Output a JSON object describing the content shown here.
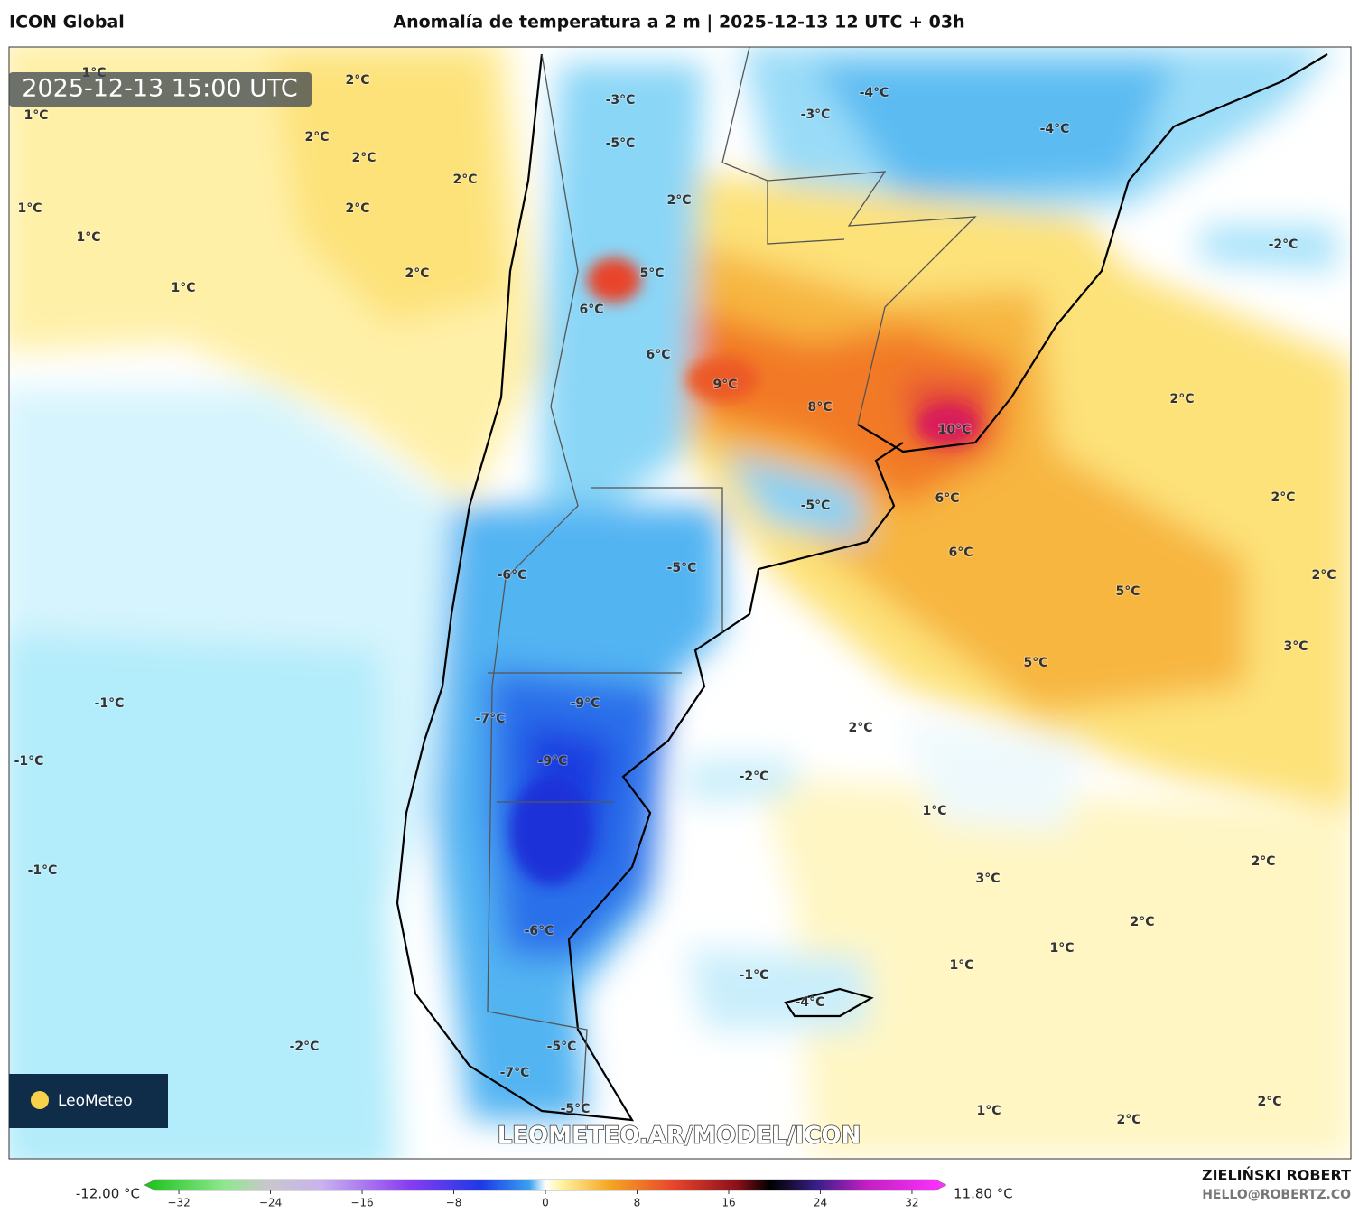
{
  "header": {
    "model": "ICON Global",
    "title": "Anomalía de temperatura a 2 m | 2025-12-13 12 UTC + 03h"
  },
  "map": {
    "timestamp": "2025-12-13 15:00 UTC",
    "watermark": "LEOMETEO.AR/MODEL/ICON",
    "logo": "LeoMeteo",
    "labels": [
      "1°C",
      "2°C",
      "1°C",
      "2°C",
      "2°C",
      "2°C",
      "1°C",
      "2°C",
      "1°C",
      "2°C",
      "1°C",
      "-3°C",
      "-5°C",
      "2°C",
      "5°C",
      "6°C",
      "6°C",
      "9°C",
      "8°C",
      "10°C",
      "-4°C",
      "-3°C",
      "-4°C",
      "-2°C",
      "2°C",
      "6°C",
      "-5°C",
      "2°C",
      "6°C",
      "-6°C",
      "-5°C",
      "2°C",
      "5°C",
      "3°C",
      "5°C",
      "-1°C",
      "-9°C",
      "-7°C",
      "2°C",
      "-1°C",
      "-9°C",
      "-2°C",
      "1°C",
      "2°C",
      "-1°C",
      "3°C",
      "2°C",
      "-6°C",
      "1°C",
      "1°C",
      "-1°C",
      "-4°C",
      "-2°C",
      "-5°C",
      "-7°C",
      "-5°C",
      "1°C",
      "2°C",
      "2°C"
    ]
  },
  "colorbar": {
    "min_label": "-12.00 °C",
    "max_label": "11.80 °C",
    "lim": [
      -35,
      35
    ],
    "ticks": [
      {
        "value": -32,
        "label": "−32"
      },
      {
        "value": -24,
        "label": "−24"
      },
      {
        "value": -16,
        "label": "−16"
      },
      {
        "value": -8,
        "label": "−8"
      },
      0,
      8,
      16,
      24,
      32
    ]
  },
  "footer": {
    "author": "ZIELIŃSKI ROBERT",
    "contact": "HELLO@ROBERTZ.CO"
  }
}
